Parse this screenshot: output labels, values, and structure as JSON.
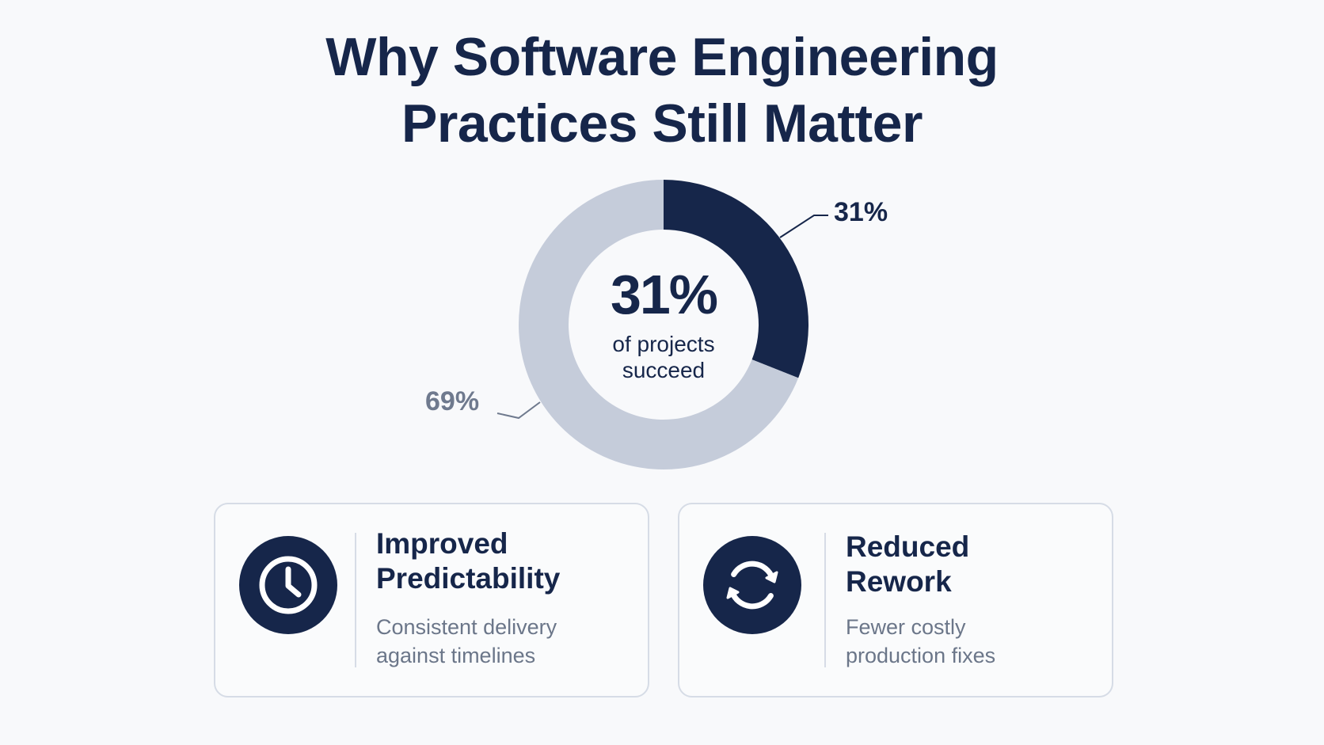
{
  "title": {
    "line1": "Why Software Engineering",
    "line2": "Practices Still Matter"
  },
  "chart_data": {
    "type": "pie",
    "variant": "donut",
    "categories": [
      "",
      ""
    ],
    "values": [
      31,
      69
    ],
    "slice_labels": [
      "31%",
      "69%"
    ],
    "colors": [
      "#16264a",
      "#c5ccda"
    ],
    "center_value": "31%",
    "center_text_line1": "of projects",
    "center_text_line2": "succeed"
  },
  "cards": [
    {
      "icon": "clock-icon",
      "title_line1": "Improved",
      "title_line2": "Predictability",
      "desc_line1": "Consistent delivery",
      "desc_line2": "against timelines"
    },
    {
      "icon": "refresh-icon",
      "title_line1": "Reduced",
      "title_line2": "Rework",
      "desc_line1": "Fewer costly",
      "desc_line2": "production fixes"
    }
  ],
  "colors": {
    "primary": "#16264a",
    "secondary": "#c5ccda",
    "muted_text": "#6b7689",
    "label_secondary": "#6f7a8e",
    "card_border": "#d6dce6"
  }
}
